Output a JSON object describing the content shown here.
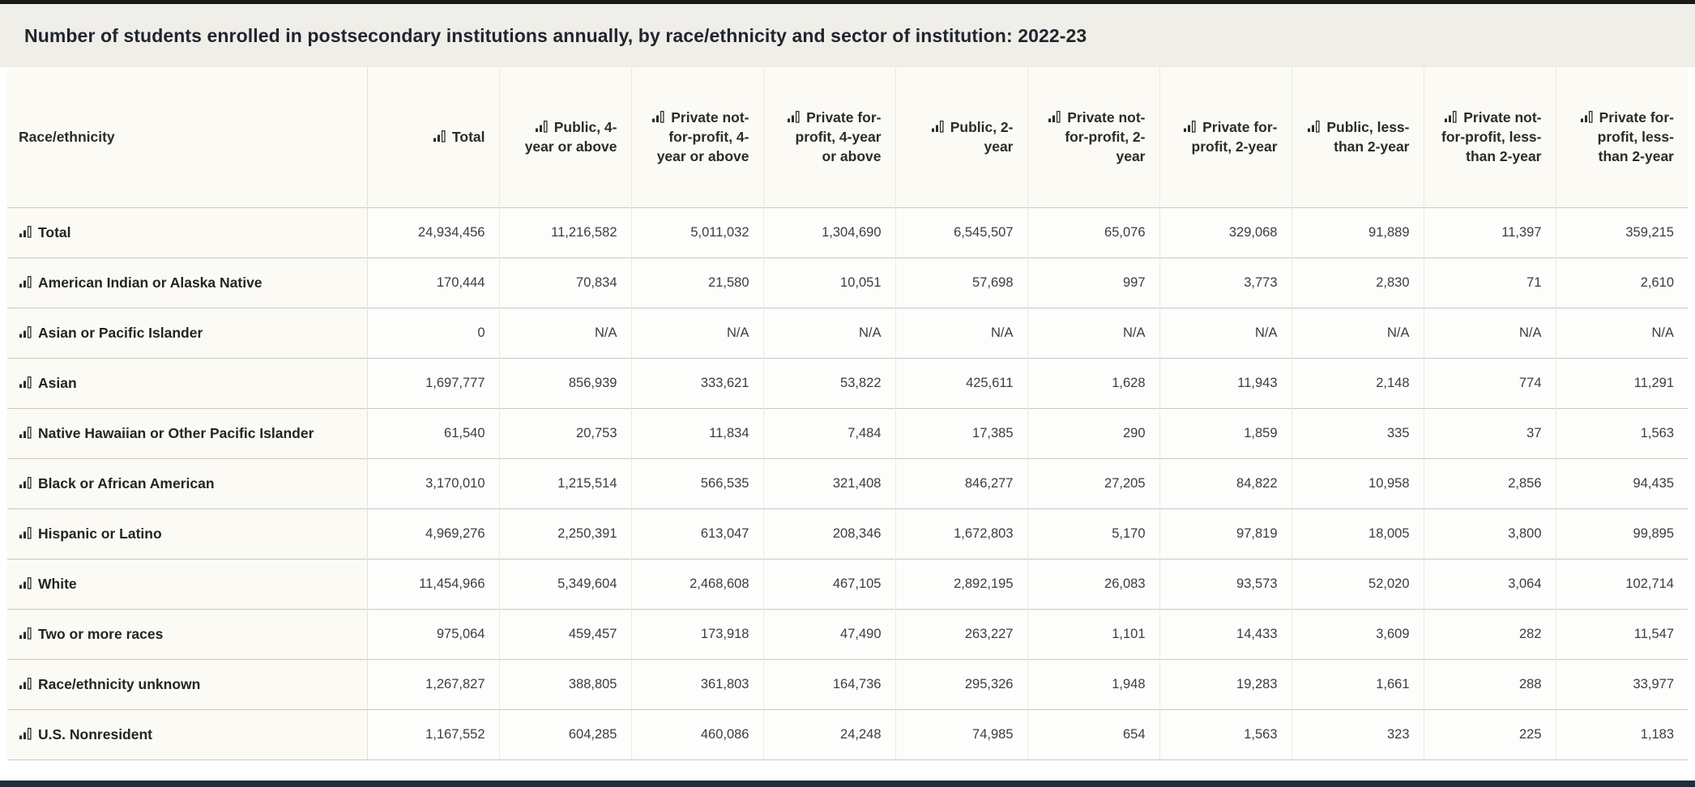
{
  "icons": {
    "row_and_header_icon": "bar-chart-icon"
  },
  "colors": {
    "top_border": "#1a1a1a",
    "title_bg": "#efeee9",
    "title_text": "#20262c",
    "header_bg": "#fbfaf5",
    "cell_bg": "#fdfdfc",
    "row_border": "#c9c8c3",
    "column_border": "#ebe9e3",
    "value_text": "#3d3d3d",
    "label_text": "#242424",
    "bottom_bar": "#1c313c"
  },
  "chart_data": {
    "type": "table",
    "title": "Number of students enrolled in postsecondary institutions annually, by race/ethnicity and sector of institution: 2022-23",
    "row_header_label": "Race/ethnicity",
    "columns": [
      "Total",
      "Public, 4-year or above",
      "Private not-for-profit, 4-year or above",
      "Private for-profit, 4-year or above",
      "Public, 2-year",
      "Private not-for-profit, 2-year",
      "Private for-profit, 2-year",
      "Public, less-than 2-year",
      "Private not-for-profit, less-than 2-year",
      "Private for-profit, less-than 2-year"
    ],
    "rows": [
      {
        "label": "Total",
        "values": [
          "24,934,456",
          "11,216,582",
          "5,011,032",
          "1,304,690",
          "6,545,507",
          "65,076",
          "329,068",
          "91,889",
          "11,397",
          "359,215"
        ]
      },
      {
        "label": "American Indian or Alaska Native",
        "values": [
          "170,444",
          "70,834",
          "21,580",
          "10,051",
          "57,698",
          "997",
          "3,773",
          "2,830",
          "71",
          "2,610"
        ]
      },
      {
        "label": "Asian or Pacific Islander",
        "values": [
          "0",
          "N/A",
          "N/A",
          "N/A",
          "N/A",
          "N/A",
          "N/A",
          "N/A",
          "N/A",
          "N/A"
        ]
      },
      {
        "label": "Asian",
        "values": [
          "1,697,777",
          "856,939",
          "333,621",
          "53,822",
          "425,611",
          "1,628",
          "11,943",
          "2,148",
          "774",
          "11,291"
        ]
      },
      {
        "label": "Native Hawaiian or Other Pacific Islander",
        "values": [
          "61,540",
          "20,753",
          "11,834",
          "7,484",
          "17,385",
          "290",
          "1,859",
          "335",
          "37",
          "1,563"
        ]
      },
      {
        "label": "Black or African American",
        "values": [
          "3,170,010",
          "1,215,514",
          "566,535",
          "321,408",
          "846,277",
          "27,205",
          "84,822",
          "10,958",
          "2,856",
          "94,435"
        ]
      },
      {
        "label": "Hispanic or Latino",
        "values": [
          "4,969,276",
          "2,250,391",
          "613,047",
          "208,346",
          "1,672,803",
          "5,170",
          "97,819",
          "18,005",
          "3,800",
          "99,895"
        ]
      },
      {
        "label": "White",
        "values": [
          "11,454,966",
          "5,349,604",
          "2,468,608",
          "467,105",
          "2,892,195",
          "26,083",
          "93,573",
          "52,020",
          "3,064",
          "102,714"
        ]
      },
      {
        "label": "Two or more races",
        "values": [
          "975,064",
          "459,457",
          "173,918",
          "47,490",
          "263,227",
          "1,101",
          "14,433",
          "3,609",
          "282",
          "11,547"
        ]
      },
      {
        "label": "Race/ethnicity unknown",
        "values": [
          "1,267,827",
          "388,805",
          "361,803",
          "164,736",
          "295,326",
          "1,948",
          "19,283",
          "1,661",
          "288",
          "33,977"
        ]
      },
      {
        "label": "U.S. Nonresident",
        "values": [
          "1,167,552",
          "604,285",
          "460,086",
          "24,248",
          "74,985",
          "654",
          "1,563",
          "323",
          "225",
          "1,183"
        ]
      }
    ]
  }
}
